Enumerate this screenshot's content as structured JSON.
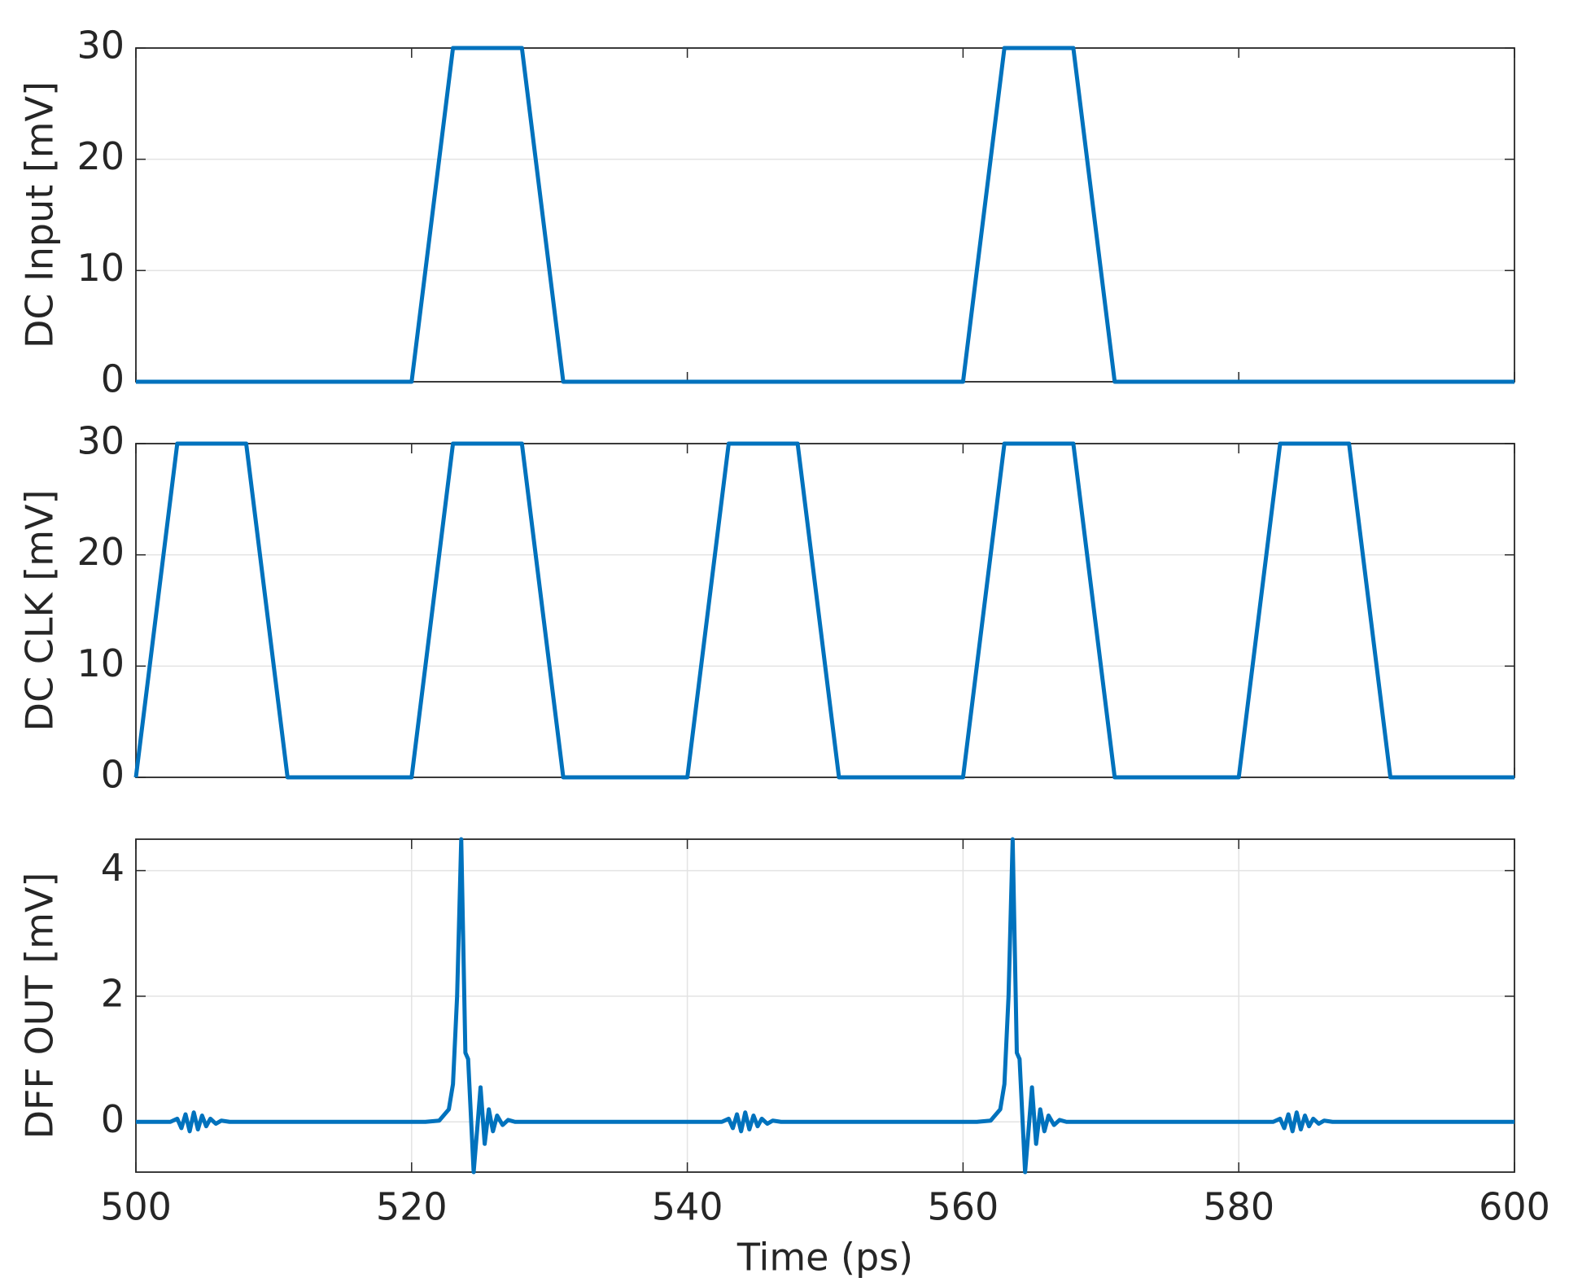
{
  "chart_data": [
    {
      "type": "line",
      "ylabel": "DC Input [mV]",
      "color": "#0072bd",
      "grid": "y",
      "x": [
        500,
        520,
        523,
        528,
        531,
        560,
        563,
        568,
        571,
        600
      ],
      "values": [
        0,
        0,
        30,
        30,
        0,
        0,
        30,
        30,
        0,
        0
      ],
      "xlim": [
        500,
        600
      ],
      "ylim": [
        0,
        30
      ],
      "yticks": [
        0,
        10,
        20,
        30
      ]
    },
    {
      "type": "line",
      "ylabel": "DC CLK [mV]",
      "color": "#0072bd",
      "grid": "y",
      "x": [
        500,
        503,
        508,
        511,
        520,
        523,
        528,
        531,
        540,
        543,
        548,
        551,
        560,
        563,
        568,
        571,
        580,
        583,
        588,
        591,
        600
      ],
      "values": [
        0,
        30,
        30,
        0,
        0,
        30,
        30,
        0,
        0,
        30,
        30,
        0,
        0,
        30,
        30,
        0,
        0,
        30,
        30,
        0,
        0
      ],
      "xlim": [
        500,
        600
      ],
      "ylim": [
        0,
        30
      ],
      "yticks": [
        0,
        10,
        20,
        30
      ]
    },
    {
      "type": "line",
      "ylabel": "DFF OUT [mV]",
      "xlabel": "Time (ps)",
      "color": "#0072bd",
      "grid": "both",
      "x": [
        500,
        502.5,
        503,
        503.3,
        503.6,
        503.9,
        504.2,
        504.5,
        504.8,
        505.1,
        505.4,
        505.8,
        506.2,
        506.8,
        521,
        522,
        522.7,
        523,
        523.3,
        523.6,
        523.9,
        524.1,
        524.5,
        524.8,
        525,
        525.3,
        525.6,
        525.9,
        526.2,
        526.6,
        527,
        527.5,
        542.5,
        543,
        543.3,
        543.6,
        543.9,
        544.2,
        544.5,
        544.8,
        545.1,
        545.4,
        545.8,
        546.2,
        546.8,
        561,
        562,
        562.7,
        563,
        563.3,
        563.6,
        563.9,
        564.1,
        564.5,
        564.8,
        565,
        565.3,
        565.6,
        565.9,
        566.2,
        566.6,
        567,
        567.5,
        582.5,
        583,
        583.3,
        583.6,
        583.9,
        584.2,
        584.5,
        584.8,
        585.1,
        585.4,
        585.8,
        586.2,
        586.8,
        600
      ],
      "values": [
        0,
        0,
        0.05,
        -0.1,
        0.12,
        -0.15,
        0.15,
        -0.12,
        0.1,
        -0.07,
        0.05,
        -0.03,
        0.02,
        0,
        0,
        0.02,
        0.2,
        0.6,
        2.0,
        4.5,
        1.1,
        1.0,
        -0.8,
        0.0,
        0.55,
        -0.35,
        0.2,
        -0.15,
        0.1,
        -0.05,
        0.03,
        0,
        0,
        0.05,
        -0.1,
        0.12,
        -0.15,
        0.15,
        -0.12,
        0.1,
        -0.07,
        0.05,
        -0.03,
        0.02,
        0,
        0,
        0.02,
        0.2,
        0.6,
        2.0,
        4.5,
        1.1,
        1.0,
        -0.8,
        0.0,
        0.55,
        -0.35,
        0.2,
        -0.15,
        0.1,
        -0.05,
        0.03,
        0,
        0,
        0.05,
        -0.1,
        0.12,
        -0.15,
        0.15,
        -0.12,
        0.1,
        -0.07,
        0.05,
        -0.03,
        0.02,
        0,
        0
      ],
      "xlim": [
        500,
        600
      ],
      "xticks": [
        500,
        520,
        540,
        560,
        580,
        600
      ],
      "ylim": [
        -0.8,
        4.5
      ],
      "yticks": [
        0,
        2,
        4
      ]
    }
  ]
}
